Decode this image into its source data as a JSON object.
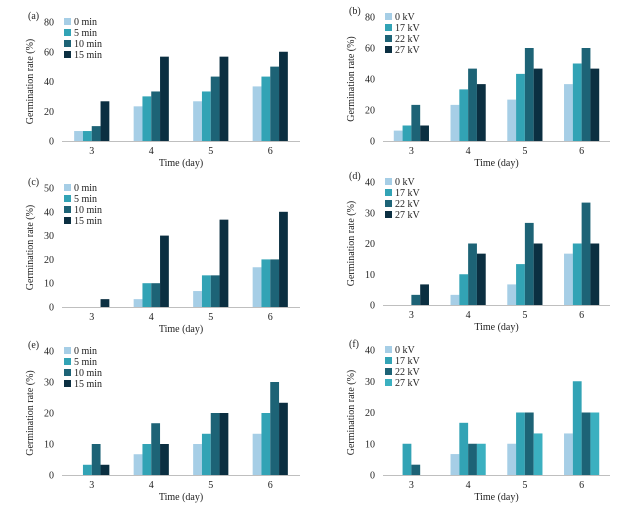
{
  "figure": {
    "colors": [
      "#a6cee6",
      "#32a3b5",
      "#1d6376",
      "#0b2f41"
    ],
    "colors_f": [
      "#a6cee6",
      "#32a3b5",
      "#1d6376",
      "#3bb0c0"
    ]
  },
  "chart_data": [
    {
      "id": "a",
      "panel_label": "(a)",
      "type": "bar",
      "categories": [
        "3",
        "4",
        "5",
        "6"
      ],
      "series": [
        {
          "name": "0 min",
          "values": [
            6.7,
            23.3,
            26.7,
            36.7
          ]
        },
        {
          "name": "5 min",
          "values": [
            6.7,
            30,
            33.3,
            43.3
          ]
        },
        {
          "name": "10 min",
          "values": [
            10,
            33.3,
            43.3,
            50
          ]
        },
        {
          "name": "15 min",
          "values": [
            26.7,
            56.7,
            56.7,
            60
          ]
        }
      ],
      "xlabel": "Time (day)",
      "ylabel": "Germination rate (%)",
      "ylim": [
        0,
        80
      ],
      "yticks": [
        0,
        20,
        40,
        60,
        80
      ],
      "grid": false,
      "legend": "top-left"
    },
    {
      "id": "b",
      "panel_label": "(b)",
      "type": "bar",
      "categories": [
        "3",
        "4",
        "5",
        "6"
      ],
      "series": [
        {
          "name": "0 kV",
          "values": [
            6.7,
            23.3,
            26.7,
            36.7
          ]
        },
        {
          "name": "17 kV",
          "values": [
            10,
            33.3,
            43.3,
            50
          ]
        },
        {
          "name": "22 kV",
          "values": [
            23.3,
            46.7,
            60,
            60
          ]
        },
        {
          "name": "27 kV",
          "values": [
            10,
            36.7,
            46.7,
            46.7
          ]
        }
      ],
      "xlabel": "Time (day)",
      "ylabel": "Germination rate (%)",
      "ylim": [
        0,
        80
      ],
      "yticks": [
        0,
        20,
        40,
        60,
        80
      ],
      "grid": false,
      "legend": "top-left"
    },
    {
      "id": "c",
      "panel_label": "(c)",
      "type": "bar",
      "categories": [
        "3",
        "4",
        "5",
        "6"
      ],
      "series": [
        {
          "name": "0 min",
          "values": [
            0,
            3.3,
            6.7,
            16.7
          ]
        },
        {
          "name": "5 min",
          "values": [
            0,
            10,
            13.3,
            20
          ]
        },
        {
          "name": "10 min",
          "values": [
            0,
            10,
            13.3,
            20
          ]
        },
        {
          "name": "15 min",
          "values": [
            3.3,
            30,
            36.7,
            40
          ]
        }
      ],
      "xlabel": "Time (day)",
      "ylabel": "Germination rate (%)",
      "ylim": [
        0,
        50
      ],
      "yticks": [
        0,
        10,
        20,
        30,
        40,
        50
      ],
      "grid": false,
      "legend": "top-left"
    },
    {
      "id": "d",
      "panel_label": "(d)",
      "type": "bar",
      "categories": [
        "3",
        "4",
        "5",
        "6"
      ],
      "series": [
        {
          "name": "0 kV",
          "values": [
            0,
            3.3,
            6.7,
            16.7
          ]
        },
        {
          "name": "17 kV",
          "values": [
            0,
            10,
            13.3,
            20
          ]
        },
        {
          "name": "22 kV",
          "values": [
            3.3,
            20,
            26.7,
            33.3
          ]
        },
        {
          "name": "27 kV",
          "values": [
            6.7,
            16.7,
            20,
            20
          ]
        }
      ],
      "xlabel": "Time (day)",
      "ylabel": "Germination rate (%)",
      "ylim": [
        0,
        40
      ],
      "yticks": [
        0,
        10,
        20,
        30,
        40
      ],
      "grid": false,
      "legend": "top-left"
    },
    {
      "id": "e",
      "panel_label": "(e)",
      "type": "bar",
      "categories": [
        "3",
        "4",
        "5",
        "6"
      ],
      "series": [
        {
          "name": "0 min",
          "values": [
            0,
            6.7,
            10,
            13.3
          ]
        },
        {
          "name": "5 min",
          "values": [
            3.3,
            10,
            13.3,
            20
          ]
        },
        {
          "name": "10 min",
          "values": [
            10,
            16.7,
            20,
            30
          ]
        },
        {
          "name": "15 min",
          "values": [
            3.3,
            10,
            20,
            23.3
          ]
        }
      ],
      "xlabel": "Time (day)",
      "ylabel": "Germination rate (%)",
      "ylim": [
        0,
        40
      ],
      "yticks": [
        0,
        10,
        20,
        30,
        40
      ],
      "grid": false,
      "legend": "top-left"
    },
    {
      "id": "f",
      "panel_label": "(f)",
      "type": "bar",
      "categories": [
        "3",
        "4",
        "5",
        "6"
      ],
      "series": [
        {
          "name": "0 kV",
          "values": [
            0,
            6.7,
            10,
            13.3
          ]
        },
        {
          "name": "17 kV",
          "values": [
            10,
            16.7,
            20,
            30
          ]
        },
        {
          "name": "22 kV",
          "values": [
            3.3,
            10,
            20,
            20
          ]
        },
        {
          "name": "27 kV",
          "values": [
            0,
            10,
            13.3,
            20
          ]
        }
      ],
      "xlabel": "Time (day)",
      "ylabel": "Germination rate (%)",
      "ylim": [
        0,
        40
      ],
      "yticks": [
        0,
        10,
        20,
        30,
        40
      ],
      "grid": false,
      "legend": "top-left"
    }
  ]
}
